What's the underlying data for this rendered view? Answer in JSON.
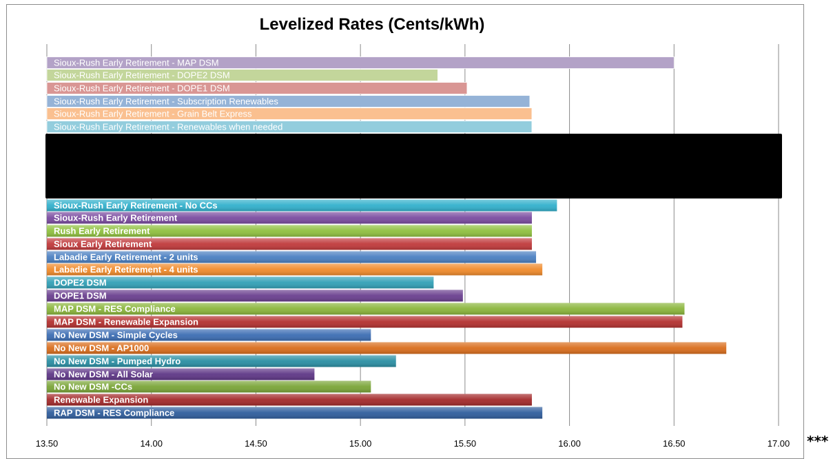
{
  "chart_data": {
    "type": "bar",
    "orientation": "horizontal",
    "title": "Levelized Rates (Cents/kWh)",
    "xlabel": "",
    "ylabel": "",
    "xlim": [
      13.5,
      17.0
    ],
    "xticks": [
      "13.50",
      "14.00",
      "14.50",
      "15.00",
      "15.50",
      "16.00",
      "16.50",
      "17.00"
    ],
    "grid": "vertical",
    "legend": "none",
    "redacted_region": true,
    "categories": [
      {
        "label": "Sioux-Rush Early Retirement - MAP DSM",
        "value": 16.5,
        "color": "#b3a2c7",
        "style": "faded"
      },
      {
        "label": "Sioux-Rush Early Retirement - DOPE2 DSM",
        "value": 15.37,
        "color": "#c3d69b",
        "style": "faded"
      },
      {
        "label": "Sioux-Rush Early Retirement - DOPE1 DSM",
        "value": 15.51,
        "color": "#d99694",
        "style": "faded"
      },
      {
        "label": "Sioux-Rush Early Retirement - Subscription Renewables",
        "value": 15.81,
        "color": "#95b3d7",
        "style": "faded"
      },
      {
        "label": "Sioux-Rush Early Retirement - Grain Belt Express",
        "value": 15.82,
        "color": "#fac090",
        "style": "faded"
      },
      {
        "label": "Sioux-Rush Early Retirement - Renewables when needed",
        "value": 15.82,
        "color": "#93cddd",
        "style": "faded"
      },
      {
        "label": "Sioux-Rush Early Retirement - No CCs",
        "value": 15.94,
        "color": "#31b0cc",
        "style": "solid"
      },
      {
        "label": "Sioux-Rush Early Retirement",
        "value": 15.82,
        "color": "#7a4ba0",
        "style": "solid"
      },
      {
        "label": "Rush Early Retirement",
        "value": 15.82,
        "color": "#8fc03f",
        "style": "solid"
      },
      {
        "label": "Sioux Early Retirement",
        "value": 15.82,
        "color": "#c0393b",
        "style": "solid"
      },
      {
        "label": "Labadie Early Retirement - 2 units",
        "value": 15.84,
        "color": "#4a7fc1",
        "style": "solid"
      },
      {
        "label": "Labadie Early Retirement - 4 units",
        "value": 15.87,
        "color": "#f08a2a",
        "style": "solid"
      },
      {
        "label": "DOPE2 DSM",
        "value": 15.35,
        "color": "#31a0b6",
        "style": "solid"
      },
      {
        "label": "DOPE1 DSM",
        "value": 15.49,
        "color": "#6a3f8f",
        "style": "solid"
      },
      {
        "label": "MAP DSM - RES Compliance",
        "value": 16.55,
        "color": "#8ab53b",
        "style": "solid"
      },
      {
        "label": "MAP DSM - Renewable Expansion",
        "value": 16.54,
        "color": "#b3302f",
        "style": "solid"
      },
      {
        "label": "No New DSM - Simple Cycles",
        "value": 15.05,
        "color": "#3c6db3",
        "style": "solid"
      },
      {
        "label": "No New DSM - AP1000",
        "value": 16.75,
        "color": "#d96d1c",
        "style": "solid"
      },
      {
        "label": "No New DSM - Pumped Hydro",
        "value": 15.17,
        "color": "#2a8ea3",
        "style": "solid"
      },
      {
        "label": "No New DSM - All Solar",
        "value": 14.78,
        "color": "#5e3686",
        "style": "solid"
      },
      {
        "label": "No New DSM -CCs",
        "value": 15.05,
        "color": "#7aa537",
        "style": "solid"
      },
      {
        "label": "Renewable Expansion",
        "value": 15.82,
        "color": "#a3292a",
        "style": "solid"
      },
      {
        "label": "RAP DSM - RES Compliance",
        "value": 15.87,
        "color": "#2f5d9c",
        "style": "solid"
      }
    ]
  },
  "footnote": "***"
}
